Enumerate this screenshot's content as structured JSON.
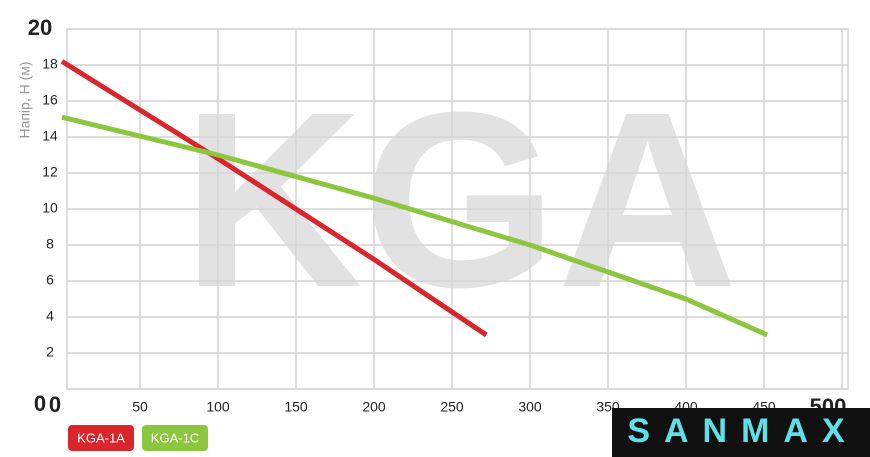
{
  "chart_data": {
    "type": "line",
    "y_label": "Напір, H (м)",
    "watermark": "KGA",
    "logo": "SANMAX",
    "xlim": [
      0,
      500
    ],
    "xticks": [
      0,
      50,
      100,
      150,
      200,
      250,
      300,
      350,
      400,
      450,
      500
    ],
    "ylim": [
      0,
      20
    ],
    "yticks": [
      0,
      2,
      4,
      6,
      8,
      10,
      12,
      14,
      16,
      18,
      20
    ],
    "grid": true,
    "series": [
      {
        "name": "KGA-1A",
        "color": "#d9262c",
        "x": [
          0,
          100,
          200,
          272
        ],
        "values": [
          18.2,
          12.8,
          7.2,
          3
        ]
      },
      {
        "name": "KGA-1C",
        "color": "#8cc63f",
        "x": [
          0,
          100,
          200,
          300,
          400,
          452
        ],
        "values": [
          15.1,
          13,
          10.6,
          8,
          5,
          3
        ]
      }
    ]
  }
}
